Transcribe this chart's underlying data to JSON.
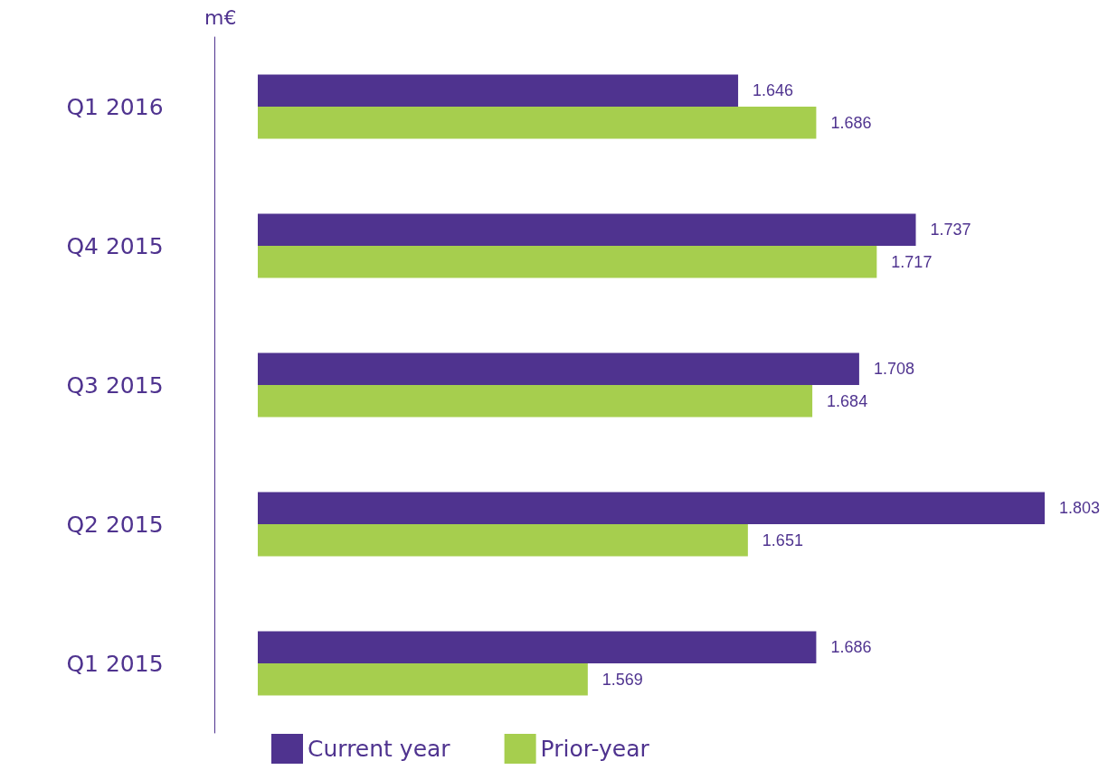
{
  "chart_data": {
    "type": "bar",
    "orientation": "horizontal",
    "ylabel": "m€",
    "categories": [
      "Q1 2016",
      "Q4 2015",
      "Q3 2015",
      "Q2 2015",
      "Q1 2015"
    ],
    "series": [
      {
        "name": "Current year",
        "color": "#4f338f",
        "values": [
          1.646,
          1.737,
          1.708,
          1.803,
          1.686
        ]
      },
      {
        "name": "Prior-year",
        "color": "#a6ce4e",
        "values": [
          1.686,
          1.717,
          1.684,
          1.651,
          1.569
        ]
      }
    ],
    "xlim": [
      1.4,
      1.803
    ],
    "tick_labels": "y",
    "data_labels": true,
    "legend": "bottom"
  }
}
